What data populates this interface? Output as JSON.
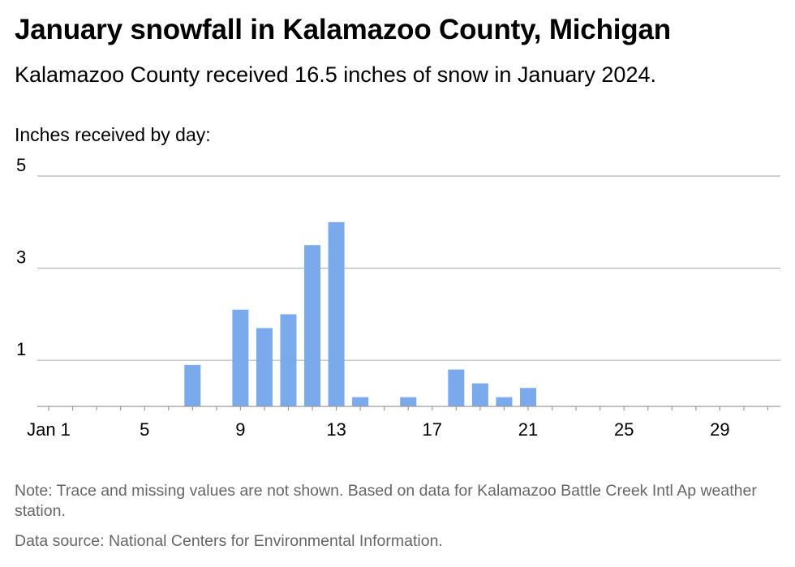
{
  "header": {
    "title": "January snowfall in Kalamazoo County, Michigan",
    "subtitle": "Kalamazoo County received 16.5 inches of snow in January 2024."
  },
  "footer": {
    "note": "Note: Trace and missing values are not shown. Based on data for Kalamazoo Battle Creek Intl Ap weather station.",
    "source": "Data source: National Centers for Environmental Information."
  },
  "chart_data": {
    "type": "bar",
    "title": "January snowfall in Kalamazoo County, Michigan",
    "subtitle": "Kalamazoo County received 16.5 inches of snow in January 2024.",
    "ylabel": "Inches received by day:",
    "xlabel": "",
    "x_ticks": [
      "Jan 1",
      "5",
      "9",
      "13",
      "17",
      "21",
      "25",
      "29"
    ],
    "x_tick_days": [
      1,
      5,
      9,
      13,
      17,
      21,
      25,
      29
    ],
    "y_ticks": [
      1,
      3,
      5
    ],
    "ylim": [
      0,
      5
    ],
    "xlim": [
      1,
      31
    ],
    "grid": true,
    "legend": "none",
    "bar_color": "#7aaaeb",
    "days": [
      7,
      9,
      10,
      11,
      12,
      13,
      14,
      16,
      18,
      19,
      20,
      21
    ],
    "values": [
      0.9,
      2.1,
      1.7,
      2.0,
      3.5,
      4.0,
      0.2,
      0.2,
      0.8,
      0.5,
      0.2,
      0.4
    ]
  }
}
